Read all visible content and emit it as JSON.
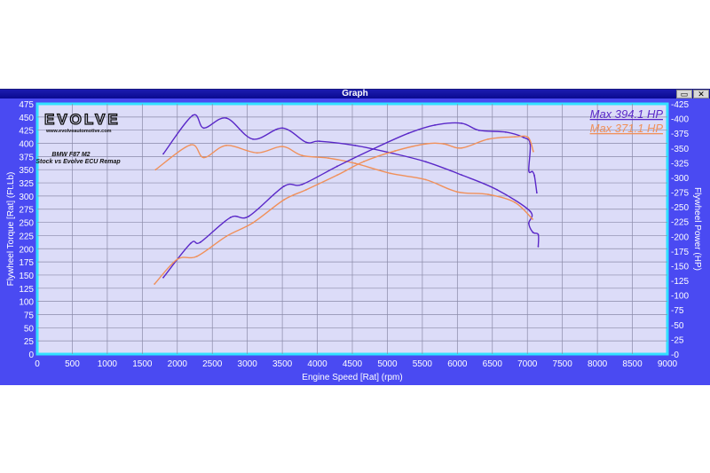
{
  "window": {
    "title": "Graph",
    "restore_icon": "restore-icon",
    "close_icon": "close-icon"
  },
  "logo": {
    "text": "EVOLVE",
    "url_text": "www.evolveautomotive.com"
  },
  "annotation": {
    "line1": "BMW F87 M2",
    "line2": "Stock vs Evolve ECU Remap"
  },
  "colors": {
    "evolve": "#5a28c8",
    "stock": "#f0905a",
    "plot_bg": "#dcdcf8",
    "frame": "#4a4af2",
    "plot_border": "#33e0ff"
  },
  "chart_data": {
    "type": "line",
    "xlabel": "Engine Speed [Rat] (rpm)",
    "ylabel_left": "Flywheel Torque [Rat] (Ft.Lb)",
    "ylabel_right": "Flywheel Power (HP)",
    "xlim": [
      0,
      9000
    ],
    "ylim_left": [
      0,
      475
    ],
    "ylim_right": [
      0,
      425
    ],
    "grid": true,
    "x_ticks": [
      0,
      500,
      1000,
      1500,
      2000,
      2500,
      3000,
      3500,
      4000,
      4500,
      5000,
      5500,
      6000,
      6500,
      7000,
      7500,
      8000,
      8500,
      9000
    ],
    "y_left_ticks": [
      0,
      25,
      50,
      75,
      100,
      125,
      150,
      175,
      200,
      225,
      250,
      275,
      300,
      325,
      350,
      375,
      400,
      425,
      450,
      475
    ],
    "y_right_ticks": [
      0,
      25,
      50,
      75,
      100,
      125,
      150,
      175,
      200,
      225,
      250,
      275,
      300,
      325,
      350,
      375,
      400,
      425
    ],
    "legend": [
      {
        "label": "Max 394.1 HP",
        "color": "#5a28c8"
      },
      {
        "label": "Max 371.1 HP",
        "color": "#f0905a"
      }
    ],
    "series": [
      {
        "id": "evolve-torque",
        "axis": "left",
        "color": "#5a28c8",
        "points": [
          [
            1800,
            380
          ],
          [
            2220,
            453
          ],
          [
            2380,
            429
          ],
          [
            2700,
            448
          ],
          [
            3080,
            408
          ],
          [
            3500,
            429
          ],
          [
            3840,
            402
          ],
          [
            4030,
            404
          ],
          [
            4540,
            396
          ],
          [
            5045,
            382
          ],
          [
            5550,
            365
          ],
          [
            6060,
            340
          ],
          [
            6565,
            312
          ],
          [
            7040,
            271
          ],
          [
            7020,
            248
          ],
          [
            7080,
            231
          ],
          [
            7155,
            227
          ],
          [
            7155,
            204
          ]
        ]
      },
      {
        "id": "stock-torque",
        "axis": "left",
        "color": "#f0905a",
        "points": [
          [
            1690,
            350
          ],
          [
            2190,
            397
          ],
          [
            2380,
            373
          ],
          [
            2700,
            396
          ],
          [
            3140,
            382
          ],
          [
            3500,
            394
          ],
          [
            3780,
            377
          ],
          [
            4160,
            372
          ],
          [
            4540,
            362
          ],
          [
            5045,
            343
          ],
          [
            5550,
            331
          ],
          [
            5995,
            308
          ],
          [
            6440,
            303
          ],
          [
            6820,
            288
          ],
          [
            7075,
            256
          ]
        ]
      },
      {
        "id": "evolve-power",
        "axis": "right",
        "color": "#5a28c8",
        "points": [
          [
            1800,
            130
          ],
          [
            2190,
            188
          ],
          [
            2330,
            190
          ],
          [
            2760,
            232
          ],
          [
            3020,
            234
          ],
          [
            3524,
            285
          ],
          [
            3780,
            288
          ],
          [
            4285,
            319
          ],
          [
            4790,
            348
          ],
          [
            5300,
            375
          ],
          [
            5680,
            389
          ],
          [
            6060,
            392
          ],
          [
            6310,
            380
          ],
          [
            6690,
            377
          ],
          [
            6945,
            368
          ],
          [
            7040,
            357
          ],
          [
            7020,
            312
          ],
          [
            7070,
            310
          ],
          [
            7100,
            303
          ],
          [
            7135,
            274
          ]
        ]
      },
      {
        "id": "stock-power",
        "axis": "right",
        "color": "#f0905a",
        "points": [
          [
            1675,
            119
          ],
          [
            2000,
            161
          ],
          [
            2280,
            166
          ],
          [
            2700,
            200
          ],
          [
            3080,
            223
          ],
          [
            3524,
            262
          ],
          [
            3840,
            279
          ],
          [
            4285,
            304
          ],
          [
            4665,
            327
          ],
          [
            5110,
            345
          ],
          [
            5550,
            357
          ],
          [
            5805,
            357
          ],
          [
            6060,
            350
          ],
          [
            6440,
            365
          ],
          [
            6820,
            369
          ],
          [
            7010,
            368
          ],
          [
            7085,
            344
          ]
        ]
      }
    ]
  }
}
